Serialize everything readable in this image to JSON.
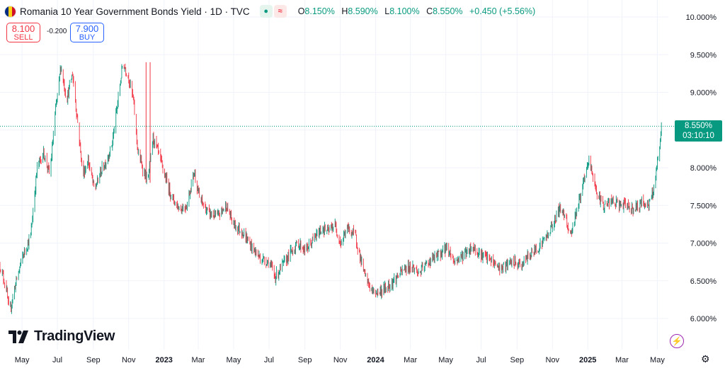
{
  "header": {
    "title": "Romania 10 Year Government Bonds Yield · 1D · TVC",
    "flag_colors": [
      "#002b7f",
      "#fcd116",
      "#ce1126"
    ],
    "open_label": "O",
    "open": "8.150%",
    "high_label": "H",
    "high": "8.590%",
    "low_label": "L",
    "low": "8.100%",
    "close_label": "C",
    "close": "8.550%",
    "change": "+0.450 (+5.56%)"
  },
  "trade": {
    "sell_price": "8.100",
    "sell_label": "SELL",
    "spread": "-0.200",
    "buy_price": "7.900",
    "buy_label": "BUY"
  },
  "logo": {
    "text": "TradingView"
  },
  "price_tag": {
    "value": "8.550%",
    "countdown": "03:10:10"
  },
  "icons": {
    "bolt": "lightning-icon",
    "gear": "settings-icon"
  },
  "colors": {
    "up": "#089981",
    "down": "#f23645",
    "grid": "#f0f3fa",
    "axis_text": "#131722"
  },
  "chart_data": {
    "type": "candlestick",
    "title": "Romania 10 Year Government Bonds Yield · 1D · TVC",
    "ylim": [
      5.85,
      10.1
    ],
    "y_ticks": [
      "6.000%",
      "6.500%",
      "7.000%",
      "7.500%",
      "8.000%",
      "8.500%",
      "9.000%",
      "9.500%",
      "10.000%"
    ],
    "y_tick_values": [
      6.0,
      6.5,
      7.0,
      7.5,
      8.0,
      8.5,
      9.0,
      9.5,
      10.0
    ],
    "x_range": [
      "2022-03-24",
      "2025-05-20"
    ],
    "x_ticks": [
      {
        "label": "May",
        "date": "2022-05-01",
        "bold": false
      },
      {
        "label": "Jul",
        "date": "2022-07-01",
        "bold": false
      },
      {
        "label": "Sep",
        "date": "2022-09-01",
        "bold": false
      },
      {
        "label": "Nov",
        "date": "2022-11-01",
        "bold": false
      },
      {
        "label": "2023",
        "date": "2023-01-01",
        "bold": true
      },
      {
        "label": "Mar",
        "date": "2023-03-01",
        "bold": false
      },
      {
        "label": "May",
        "date": "2023-05-01",
        "bold": false
      },
      {
        "label": "Jul",
        "date": "2023-07-01",
        "bold": false
      },
      {
        "label": "Sep",
        "date": "2023-09-01",
        "bold": false
      },
      {
        "label": "Nov",
        "date": "2023-11-01",
        "bold": false
      },
      {
        "label": "2024",
        "date": "2024-01-01",
        "bold": true
      },
      {
        "label": "Mar",
        "date": "2024-03-01",
        "bold": false
      },
      {
        "label": "May",
        "date": "2024-05-01",
        "bold": false
      },
      {
        "label": "Jul",
        "date": "2024-07-01",
        "bold": false
      },
      {
        "label": "Sep",
        "date": "2024-09-01",
        "bold": false
      },
      {
        "label": "Nov",
        "date": "2024-11-01",
        "bold": false
      },
      {
        "label": "2025",
        "date": "2025-01-01",
        "bold": true
      },
      {
        "label": "Mar",
        "date": "2025-03-01",
        "bold": false
      },
      {
        "label": "May",
        "date": "2025-05-01",
        "bold": false
      }
    ],
    "last_price": 8.55,
    "series_path": [
      {
        "date": "2022-03-24",
        "value": 6.7
      },
      {
        "date": "2022-04-04",
        "value": 6.4
      },
      {
        "date": "2022-04-09",
        "value": 6.05
      },
      {
        "date": "2022-04-18",
        "value": 6.4
      },
      {
        "date": "2022-05-01",
        "value": 6.8
      },
      {
        "date": "2022-05-16",
        "value": 7.1
      },
      {
        "date": "2022-05-27",
        "value": 8.0
      },
      {
        "date": "2022-06-07",
        "value": 8.2
      },
      {
        "date": "2022-06-18",
        "value": 7.9
      },
      {
        "date": "2022-06-27",
        "value": 8.7
      },
      {
        "date": "2022-07-07",
        "value": 9.35
      },
      {
        "date": "2022-07-17",
        "value": 8.9
      },
      {
        "date": "2022-07-27",
        "value": 9.25
      },
      {
        "date": "2022-08-05",
        "value": 8.6
      },
      {
        "date": "2022-08-14",
        "value": 7.9
      },
      {
        "date": "2022-08-23",
        "value": 8.1
      },
      {
        "date": "2022-09-03",
        "value": 7.7
      },
      {
        "date": "2022-09-14",
        "value": 7.95
      },
      {
        "date": "2022-09-24",
        "value": 8.1
      },
      {
        "date": "2022-10-03",
        "value": 8.3
      },
      {
        "date": "2022-10-12",
        "value": 8.8
      },
      {
        "date": "2022-10-22",
        "value": 9.4
      },
      {
        "date": "2022-11-01",
        "value": 9.2
      },
      {
        "date": "2022-11-09",
        "value": 8.9
      },
      {
        "date": "2022-11-17",
        "value": 8.2
      },
      {
        "date": "2022-11-25",
        "value": 8.0
      },
      {
        "date": "2022-12-04",
        "value": 7.8
      },
      {
        "date": "2022-12-13",
        "value": 8.4
      },
      {
        "date": "2022-12-22",
        "value": 8.2
      },
      {
        "date": "2023-01-02",
        "value": 7.9
      },
      {
        "date": "2023-01-15",
        "value": 7.6
      },
      {
        "date": "2023-01-28",
        "value": 7.45
      },
      {
        "date": "2023-02-09",
        "value": 7.5
      },
      {
        "date": "2023-02-22",
        "value": 7.95
      },
      {
        "date": "2023-03-03",
        "value": 7.6
      },
      {
        "date": "2023-03-18",
        "value": 7.4
      },
      {
        "date": "2023-04-03",
        "value": 7.35
      },
      {
        "date": "2023-04-18",
        "value": 7.5
      },
      {
        "date": "2023-05-01",
        "value": 7.25
      },
      {
        "date": "2023-05-16",
        "value": 7.15
      },
      {
        "date": "2023-06-01",
        "value": 6.95
      },
      {
        "date": "2023-06-16",
        "value": 6.8
      },
      {
        "date": "2023-07-01",
        "value": 6.75
      },
      {
        "date": "2023-07-12",
        "value": 6.55
      },
      {
        "date": "2023-07-24",
        "value": 6.7
      },
      {
        "date": "2023-08-05",
        "value": 6.85
      },
      {
        "date": "2023-08-20",
        "value": 7.0
      },
      {
        "date": "2023-09-02",
        "value": 6.9
      },
      {
        "date": "2023-09-16",
        "value": 7.05
      },
      {
        "date": "2023-10-01",
        "value": 7.2
      },
      {
        "date": "2023-10-11",
        "value": 7.15
      },
      {
        "date": "2023-10-22",
        "value": 7.25
      },
      {
        "date": "2023-11-02",
        "value": 7.0
      },
      {
        "date": "2023-11-13",
        "value": 7.2
      },
      {
        "date": "2023-11-27",
        "value": 7.1
      },
      {
        "date": "2023-12-04",
        "value": 6.85
      },
      {
        "date": "2023-12-14",
        "value": 6.55
      },
      {
        "date": "2023-12-27",
        "value": 6.35
      },
      {
        "date": "2024-01-07",
        "value": 6.35
      },
      {
        "date": "2024-01-18",
        "value": 6.4
      },
      {
        "date": "2024-02-01",
        "value": 6.5
      },
      {
        "date": "2024-02-19",
        "value": 6.65
      },
      {
        "date": "2024-03-03",
        "value": 6.7
      },
      {
        "date": "2024-03-16",
        "value": 6.6
      },
      {
        "date": "2024-04-01",
        "value": 6.75
      },
      {
        "date": "2024-04-20",
        "value": 6.85
      },
      {
        "date": "2024-05-03",
        "value": 6.95
      },
      {
        "date": "2024-05-16",
        "value": 6.75
      },
      {
        "date": "2024-06-01",
        "value": 6.85
      },
      {
        "date": "2024-06-16",
        "value": 6.95
      },
      {
        "date": "2024-07-01",
        "value": 6.85
      },
      {
        "date": "2024-07-21",
        "value": 6.75
      },
      {
        "date": "2024-08-04",
        "value": 6.65
      },
      {
        "date": "2024-08-24",
        "value": 6.75
      },
      {
        "date": "2024-09-08",
        "value": 6.7
      },
      {
        "date": "2024-09-23",
        "value": 6.85
      },
      {
        "date": "2024-10-08",
        "value": 6.95
      },
      {
        "date": "2024-10-23",
        "value": 7.1
      },
      {
        "date": "2024-11-02",
        "value": 7.25
      },
      {
        "date": "2024-11-12",
        "value": 7.45
      },
      {
        "date": "2024-11-22",
        "value": 7.4
      },
      {
        "date": "2024-12-02",
        "value": 7.1
      },
      {
        "date": "2024-12-10",
        "value": 7.35
      },
      {
        "date": "2024-12-20",
        "value": 7.65
      },
      {
        "date": "2024-12-28",
        "value": 7.9
      },
      {
        "date": "2025-01-03",
        "value": 8.1
      },
      {
        "date": "2025-01-11",
        "value": 7.85
      },
      {
        "date": "2025-01-19",
        "value": 7.6
      },
      {
        "date": "2025-01-29",
        "value": 7.5
      },
      {
        "date": "2025-02-12",
        "value": 7.55
      },
      {
        "date": "2025-02-26",
        "value": 7.5
      },
      {
        "date": "2025-03-10",
        "value": 7.5
      },
      {
        "date": "2025-03-22",
        "value": 7.45
      },
      {
        "date": "2025-04-06",
        "value": 7.55
      },
      {
        "date": "2025-04-16",
        "value": 7.5
      },
      {
        "date": "2025-04-23",
        "value": 7.65
      },
      {
        "date": "2025-04-29",
        "value": 7.95
      },
      {
        "date": "2025-05-05",
        "value": 8.25
      },
      {
        "date": "2025-05-08",
        "value": 8.55
      }
    ],
    "spikes": [
      {
        "date": "2022-12-01",
        "value": 9.4
      },
      {
        "date": "2022-12-08",
        "value": 9.4
      }
    ]
  }
}
